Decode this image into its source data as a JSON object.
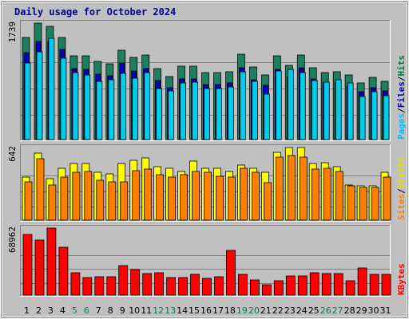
{
  "chart_data": {
    "type": "bar",
    "title": "Daily usage for October 2024",
    "categories": [
      "1",
      "2",
      "3",
      "4",
      "5",
      "6",
      "7",
      "8",
      "9",
      "10",
      "11",
      "12",
      "13",
      "14",
      "15",
      "16",
      "17",
      "18",
      "19",
      "20",
      "21",
      "22",
      "23",
      "24",
      "25",
      "26",
      "27",
      "28",
      "29",
      "30",
      "31"
    ],
    "weekend_days": [
      "5",
      "6",
      "12",
      "13",
      "19",
      "20",
      "26",
      "27"
    ],
    "panels": [
      {
        "id": "hits-files-pages",
        "max_label": "1739",
        "ymax": 1739,
        "axis_labels": [
          {
            "text": "Pages",
            "color": "#00c0ff"
          },
          {
            "text": "/",
            "color": "#000000"
          },
          {
            "text": "Files",
            "color": "#0000c0"
          },
          {
            "text": "/",
            "color": "#000000"
          },
          {
            "text": "Hits",
            "color": "#008040"
          }
        ],
        "series": [
          {
            "name": "Hits",
            "color": "#1a8060",
            "values": [
              1520,
              1739,
              1690,
              1530,
              1250,
              1250,
              1170,
              1130,
              1330,
              1230,
              1260,
              1060,
              940,
              1090,
              1090,
              1000,
              1000,
              1010,
              1270,
              1080,
              960,
              1250,
              1110,
              1260,
              1070,
              1000,
              1010,
              960,
              840,
              930,
              870
            ]
          },
          {
            "name": "Files",
            "color": "#0000c0",
            "values": [
              1300,
              1460,
              1470,
              1350,
              1060,
              1050,
              980,
              950,
              1140,
              1030,
              1060,
              880,
              770,
              900,
              900,
              820,
              820,
              840,
              1070,
              890,
              810,
              1050,
              940,
              1070,
              900,
              840,
              840,
              800,
              710,
              780,
              730
            ]
          },
          {
            "name": "Pages",
            "color": "#00ccee",
            "values": [
              1140,
              1310,
              1510,
              1220,
              1000,
              960,
              870,
              890,
              990,
              920,
              1000,
              760,
              730,
              850,
              860,
              760,
              760,
              790,
              1010,
              870,
              680,
              1030,
              1050,
              1000,
              880,
              860,
              890,
              850,
              640,
              720,
              650
            ]
          }
        ]
      },
      {
        "id": "visits-sites",
        "max_label": "642",
        "ymax": 642,
        "axis_labels": [
          {
            "text": "Sites",
            "color": "#ff8000"
          },
          {
            "text": "/",
            "color": "#000000"
          },
          {
            "text": "Visits",
            "color": "#e0e000"
          }
        ],
        "series": [
          {
            "name": "Visits",
            "color": "#ffff00",
            "values": [
              380,
              590,
              370,
              460,
              500,
              500,
              420,
              410,
              500,
              530,
              550,
              470,
              460,
              430,
              520,
              460,
              460,
              430,
              490,
              460,
              420,
              600,
              642,
              640,
              500,
              510,
              470,
              310,
              300,
              300,
              420
            ]
          },
          {
            "name": "Sites",
            "color": "#ff8000",
            "values": [
              340,
              540,
              310,
              380,
              420,
              430,
              350,
              340,
              340,
              440,
              450,
              400,
              380,
              400,
              430,
              420,
              390,
              380,
              460,
              420,
              330,
              560,
              570,
              560,
              450,
              460,
              430,
              300,
              290,
              290,
              380
            ]
          }
        ]
      },
      {
        "id": "kbytes",
        "max_label": "68962",
        "ymax": 68962,
        "axis_labels": [
          {
            "text": "KBytes",
            "color": "#ff0000"
          }
        ],
        "series": [
          {
            "name": "KBytes",
            "color": "#ff0000",
            "values": [
              62000,
              57000,
              68962,
              49000,
              23000,
              18000,
              19000,
              19000,
              30000,
              26000,
              22000,
              23000,
              18000,
              18000,
              21000,
              17000,
              19000,
              46000,
              21000,
              16000,
              11000,
              15000,
              20000,
              20000,
              23000,
              22000,
              22000,
              15000,
              28000,
              21000,
              21000
            ]
          }
        ]
      }
    ]
  }
}
